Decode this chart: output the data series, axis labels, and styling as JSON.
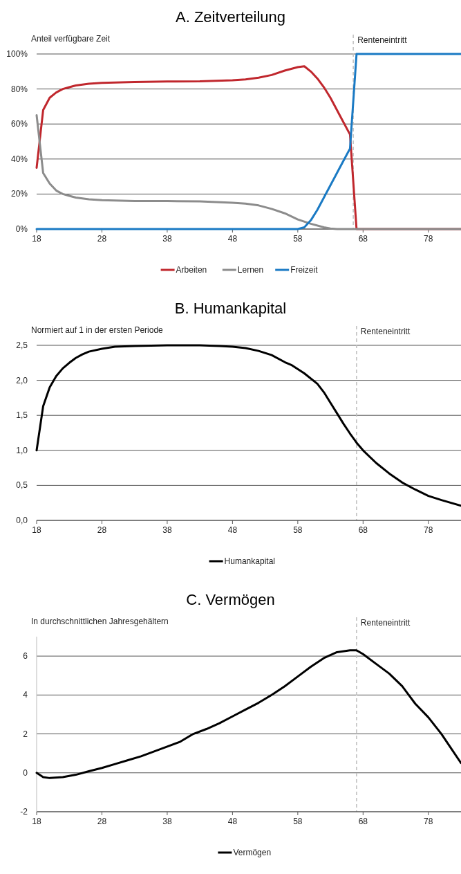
{
  "chart_data": [
    {
      "type": "line",
      "title": "A. Zeitverteilung",
      "ylabel": "Anteil verfügbare Zeit",
      "xlim": [
        18,
        83
      ],
      "xticks": [
        18,
        28,
        38,
        48,
        58,
        68,
        78
      ],
      "ylim": [
        0,
        100
      ],
      "yticks": [
        {
          "value": 0,
          "label": "0%"
        },
        {
          "value": 20,
          "label": "20%"
        },
        {
          "value": 40,
          "label": "40%"
        },
        {
          "value": 60,
          "label": "60%"
        },
        {
          "value": 80,
          "label": "80%"
        },
        {
          "value": 100,
          "label": "100%"
        }
      ],
      "grid": "y",
      "legend": "bottom",
      "ref_lines": [
        {
          "axis": "x",
          "value": 66.5,
          "label": "Renteneintritt",
          "color": "#bfbfbf",
          "line_style": "dashed"
        }
      ],
      "series": [
        {
          "name": "Arbeiten",
          "color": "#c0272d",
          "x": [
            18,
            19,
            20,
            21,
            22,
            23,
            24,
            26,
            28,
            33,
            38,
            43,
            48,
            50,
            52,
            54,
            56,
            58,
            59,
            60,
            61,
            62,
            63,
            64,
            65,
            66,
            67,
            83
          ],
          "values": [
            35,
            68,
            75,
            78,
            80,
            81,
            82,
            83,
            83.5,
            84,
            84.3,
            84.4,
            85,
            85.5,
            86.5,
            88,
            90.5,
            92.5,
            93,
            90,
            86,
            81,
            75,
            68,
            61,
            54,
            0,
            0
          ]
        },
        {
          "name": "Lernen",
          "color": "#8c8c8c",
          "x": [
            18,
            19,
            20,
            21,
            22,
            23,
            24,
            26,
            28,
            33,
            38,
            43,
            48,
            50,
            52,
            54,
            56,
            58,
            60,
            62,
            63,
            64,
            83
          ],
          "values": [
            65,
            32,
            26,
            22,
            20,
            19,
            18,
            17,
            16.5,
            16,
            16,
            15.8,
            15,
            14.5,
            13.5,
            11.5,
            9,
            5.5,
            3,
            1,
            0.3,
            0,
            0
          ]
        },
        {
          "name": "Freizeit",
          "color": "#1a7ac4",
          "x": [
            18,
            58,
            59,
            60,
            61,
            62,
            63,
            64,
            65,
            66,
            67,
            83
          ],
          "values": [
            0,
            0,
            1,
            5,
            11,
            18,
            25,
            32,
            39,
            46,
            100,
            100
          ]
        }
      ]
    },
    {
      "type": "line",
      "title": "B. Humankapital",
      "ylabel": "Normiert auf 1 in der ersten Periode",
      "xlim": [
        18,
        83
      ],
      "xticks": [
        18,
        28,
        38,
        48,
        58,
        68,
        78
      ],
      "ylim": [
        0,
        2.5
      ],
      "yticks": [
        {
          "value": 0,
          "label": "0,0"
        },
        {
          "value": 0.5,
          "label": "0,5"
        },
        {
          "value": 1,
          "label": "1,0"
        },
        {
          "value": 1.5,
          "label": "1,5"
        },
        {
          "value": 2,
          "label": "2,0"
        },
        {
          "value": 2.5,
          "label": "2,5"
        }
      ],
      "grid": "y",
      "legend": "bottom",
      "ref_lines": [
        {
          "axis": "x",
          "value": 67,
          "label": "Renteneintritt",
          "color": "#bfbfbf",
          "line_style": "dashed"
        }
      ],
      "series": [
        {
          "name": "Humankapital",
          "color": "#000000",
          "x": [
            18,
            19,
            20,
            21,
            22,
            23,
            24,
            25,
            26,
            28,
            30,
            33,
            38,
            43,
            46,
            48,
            50,
            52,
            54,
            56,
            57,
            59,
            61,
            62,
            63,
            64,
            65,
            66,
            67,
            68,
            70,
            72,
            74,
            76,
            78,
            80,
            83
          ],
          "values": [
            1.0,
            1.63,
            1.9,
            2.06,
            2.17,
            2.25,
            2.32,
            2.37,
            2.41,
            2.45,
            2.48,
            2.49,
            2.5,
            2.5,
            2.49,
            2.48,
            2.46,
            2.42,
            2.36,
            2.26,
            2.22,
            2.1,
            1.95,
            1.83,
            1.68,
            1.53,
            1.38,
            1.24,
            1.11,
            1.0,
            0.82,
            0.67,
            0.54,
            0.44,
            0.35,
            0.29,
            0.21
          ]
        }
      ]
    },
    {
      "type": "line",
      "title": "C. Vermögen",
      "ylabel": "In durchschnittlichen Jahresgehältern",
      "xlim": [
        18,
        83
      ],
      "xticks": [
        18,
        28,
        38,
        48,
        58,
        68,
        78
      ],
      "ylim": [
        -2,
        7
      ],
      "yticks": [
        -2,
        0,
        2,
        4,
        6
      ],
      "grid": "y",
      "legend": "bottom",
      "ref_lines": [
        {
          "axis": "x",
          "value": 67,
          "label": "Renteneintritt",
          "color": "#bfbfbf",
          "line_style": "dashed"
        }
      ],
      "series": [
        {
          "name": "Vermögen",
          "color": "#000000",
          "x": [
            18,
            19,
            20,
            22,
            24,
            26,
            28,
            30,
            32,
            34,
            36,
            38,
            40,
            42,
            44,
            46,
            48,
            50,
            52,
            54,
            56,
            58,
            60,
            62,
            64,
            66,
            67,
            68,
            70,
            72,
            74,
            75,
            76,
            78,
            80,
            83
          ],
          "values": [
            0,
            -0.22,
            -0.27,
            -0.22,
            -0.1,
            0.08,
            0.25,
            0.45,
            0.65,
            0.85,
            1.1,
            1.35,
            1.6,
            2.0,
            2.25,
            2.55,
            2.9,
            3.25,
            3.6,
            4.0,
            4.45,
            4.95,
            5.45,
            5.9,
            6.2,
            6.3,
            6.3,
            6.1,
            5.6,
            5.1,
            4.45,
            4.0,
            3.55,
            2.85,
            2.0,
            0.5
          ]
        }
      ]
    }
  ]
}
